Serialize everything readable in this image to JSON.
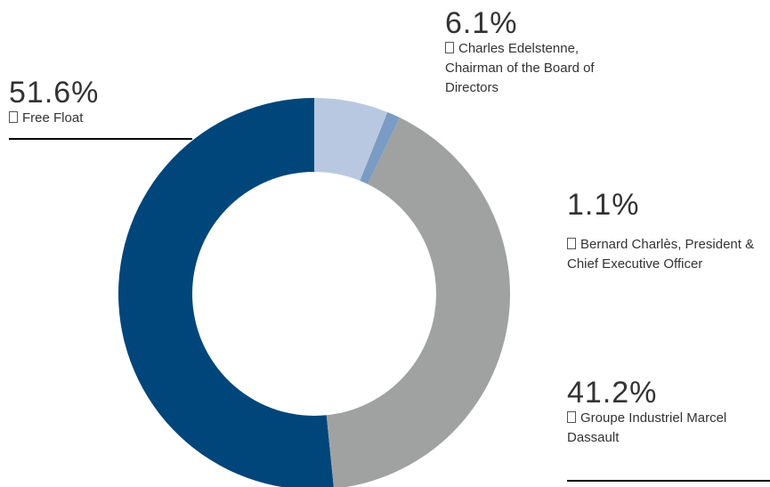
{
  "chart_data": {
    "type": "donut",
    "categories": [
      "Charles Edelstenne, Chairman of the Board of Directors",
      "Bernard Charlès, President & Chief Executive Officer",
      "Groupe Industriel Marcel Dassault",
      "Free Float"
    ],
    "values": [
      6.1,
      1.1,
      41.2,
      51.6
    ],
    "value_labels": [
      "6.1%",
      "1.1%",
      "41.2%",
      "51.6%"
    ],
    "colors": [
      "#b9c8e1",
      "#7a9bc4",
      "#a0a2a1",
      "#00467a"
    ]
  }
}
